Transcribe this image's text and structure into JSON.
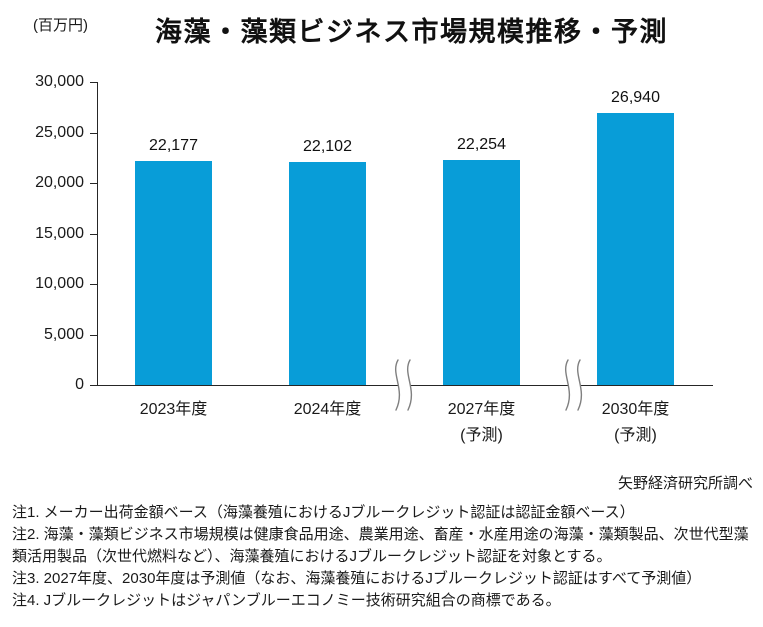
{
  "chart_data": {
    "type": "bar",
    "title": "海藻・藻類ビジネス市場規模推移・予測",
    "unit_label": "(百万円)",
    "categories": [
      "2023年度",
      "2024年度",
      "2027年度",
      "2030年度"
    ],
    "category_sublabels": [
      "",
      "",
      "(予測)",
      "(予測)"
    ],
    "values": [
      22177,
      22102,
      22254,
      26940
    ],
    "value_labels": [
      "22,177",
      "22,102",
      "22,254",
      "26,940"
    ],
    "xlabel": "",
    "ylabel": "",
    "ylim": [
      0,
      30000
    ],
    "ytick_interval": 5000,
    "ytick_labels": [
      "30,000",
      "25,000",
      "20,000",
      "15,000",
      "10,000",
      "5,000",
      "0"
    ],
    "grid": false,
    "legend": "none",
    "bar_color": "#089dd8",
    "axis_break_between": [
      [
        "2024年度",
        "2027年度"
      ],
      [
        "2027年度",
        "2030年度"
      ]
    ]
  },
  "source": "矢野経済研究所調べ",
  "notes": [
    "注1. メーカー出荷金額ベース（海藻養殖におけるJブルークレジット認証は認証金額ベース）",
    "注2. 海藻・藻類ビジネス市場規模は健康食品用途、農業用途、畜産・水産用途の海藻・藻類製品、次世代型藻類活用製品（次世代燃料など）、海藻養殖におけるJブルークレジット認証を対象とする。",
    "注3. 2027年度、2030年度は予測値（なお、海藻養殖におけるJブルークレジット認証はすべて予測値）",
    "注4. Jブルークレジットはジャパンブルーエコノミー技術研究組合の商標である。"
  ]
}
